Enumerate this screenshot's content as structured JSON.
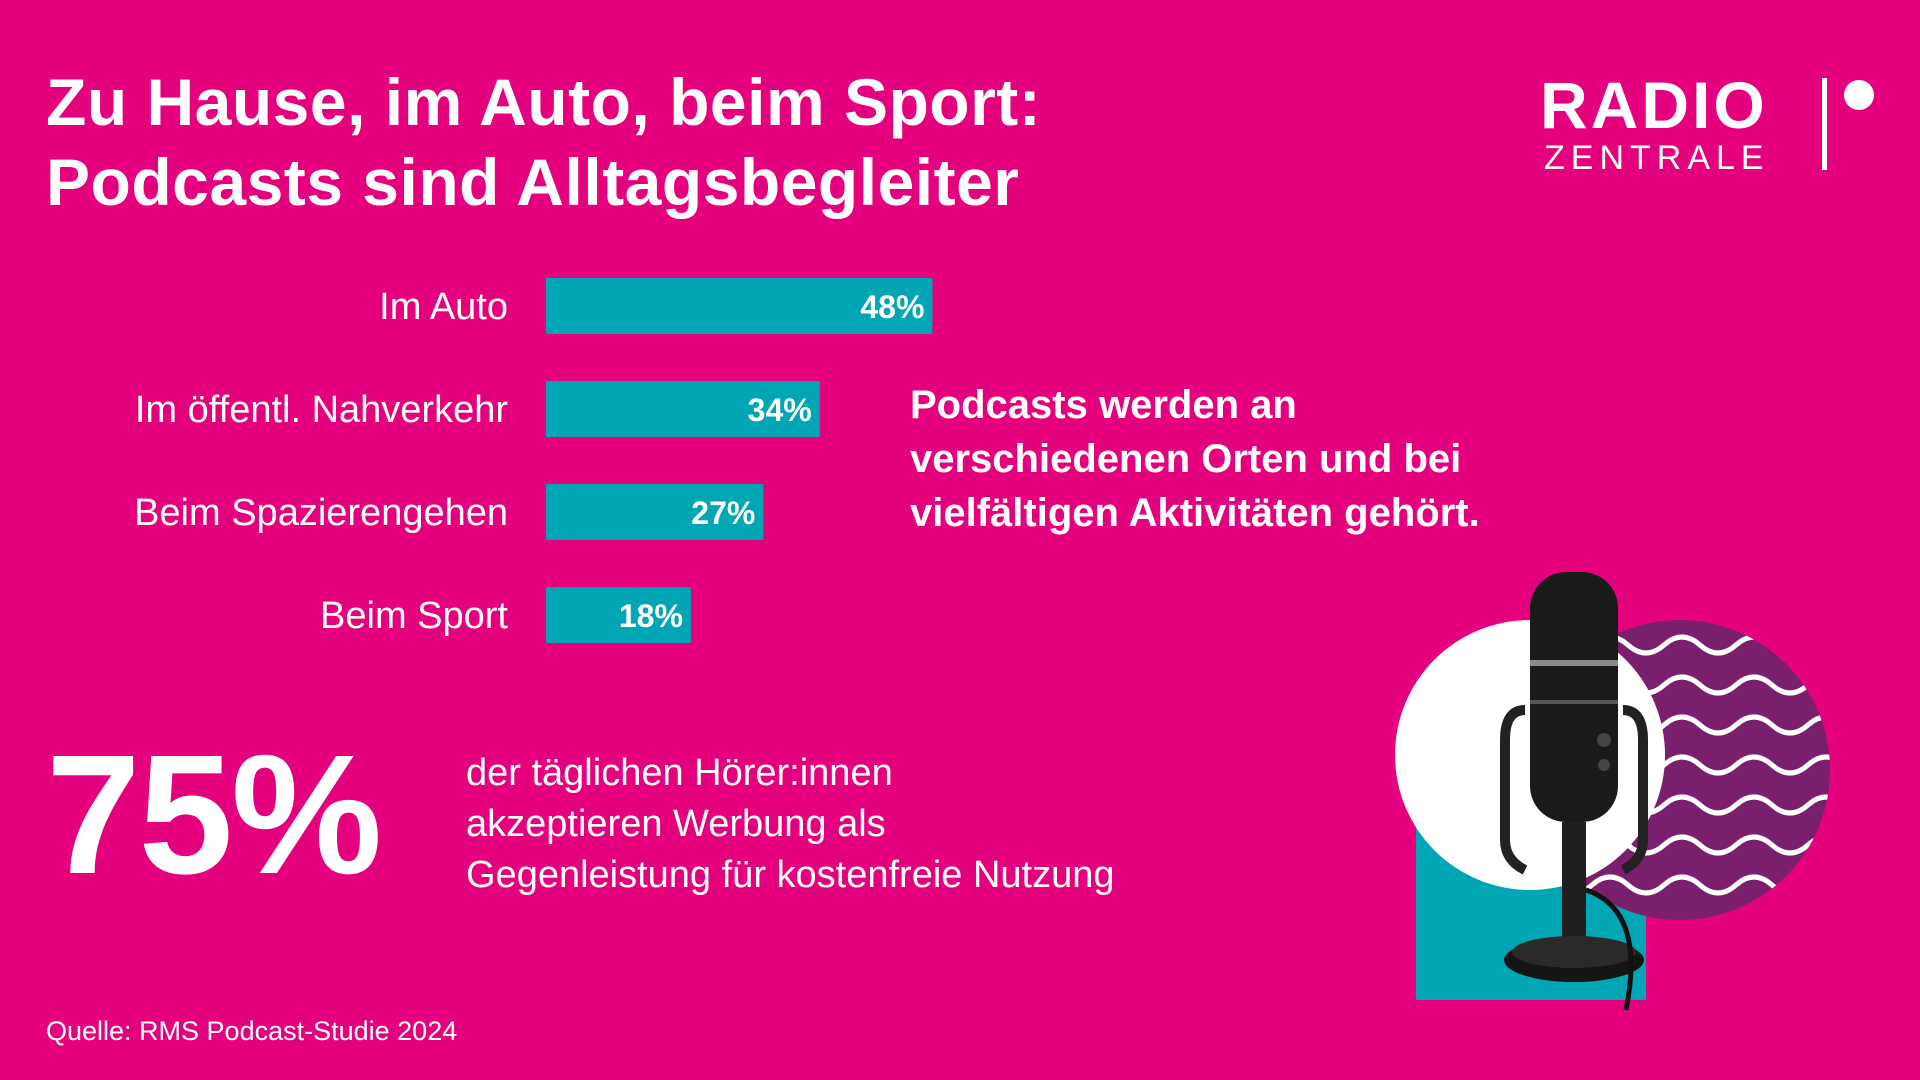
{
  "title_lines": [
    "Zu Hause, im Auto, beim Sport:",
    "Podcasts sind Alltagsbegleiter"
  ],
  "logo": {
    "line1": "RADIO",
    "line2": "ZENTRALE"
  },
  "colors": {
    "background": "#E5007E",
    "bar": "#00A6B4",
    "text": "#FFFFFF",
    "illustration_purple": "#7A1E6E"
  },
  "chart_data": {
    "type": "bar",
    "orientation": "horizontal",
    "categories": [
      "Im Auto",
      "Im öffentl. Nahverkehr",
      "Beim Spazierengehen",
      "Beim Sport"
    ],
    "values": [
      48,
      34,
      27,
      18
    ],
    "value_labels": [
      "48%",
      "34%",
      "27%",
      "18%"
    ],
    "unit": "%",
    "xlim": [
      0,
      100
    ],
    "grid": false,
    "legend": "none"
  },
  "callout_lines": [
    "Podcasts werden an",
    "verschiedenen Orten und bei",
    "vielfältigen Aktivitäten gehört."
  ],
  "stat": {
    "value": "75%",
    "lines": [
      "der täglichen Hörer:innen",
      "akzeptieren Werbung als",
      "Gegenleistung für kostenfreie Nutzung"
    ]
  },
  "source": "Quelle: RMS Podcast-Studie 2024",
  "illustration": {
    "icon": "podcast-microphone-icon"
  }
}
